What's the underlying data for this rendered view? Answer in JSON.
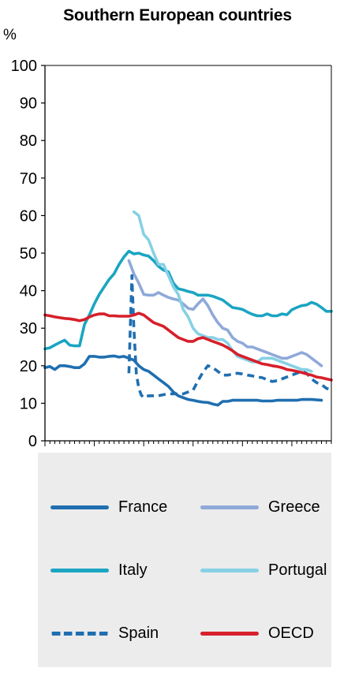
{
  "chart_data": {
    "type": "line",
    "title": "Southern European countries",
    "ylabel": "%",
    "xlim": [
      1960,
      2018
    ],
    "ylim": [
      0,
      100
    ],
    "xticks": [
      1960,
      1970,
      1980,
      1990,
      2000,
      2010
    ],
    "yticks": [
      0,
      10,
      20,
      30,
      40,
      50,
      60,
      70,
      80,
      90,
      100
    ],
    "legend_position": "bottom",
    "series": [
      {
        "name": "France",
        "color": "#1f6fb0",
        "dashed": false,
        "x": [
          1960,
          1961,
          1962,
          1963,
          1964,
          1965,
          1966,
          1967,
          1968,
          1969,
          1970,
          1971,
          1972,
          1973,
          1974,
          1975,
          1976,
          1977,
          1978,
          1979,
          1980,
          1981,
          1982,
          1983,
          1984,
          1985,
          1986,
          1987,
          1988,
          1989,
          1990,
          1991,
          1992,
          1993,
          1994,
          1995,
          1996,
          1997,
          1998,
          1999,
          2000,
          2001,
          2002,
          2003,
          2004,
          2005,
          2006,
          2007,
          2008,
          2009,
          2010,
          2011,
          2012,
          2013,
          2014,
          2015,
          2016
        ],
        "y": [
          19.5,
          19.8,
          19,
          20,
          20,
          19.8,
          19.5,
          19.5,
          20.5,
          22.5,
          22.5,
          22.3,
          22.3,
          22.5,
          22.6,
          22.3,
          22.5,
          22,
          21.5,
          20,
          19,
          18.5,
          17.5,
          16.5,
          15.5,
          14.5,
          13,
          12,
          11.5,
          11,
          10.8,
          10.5,
          10.3,
          10.2,
          9.8,
          9.5,
          10.5,
          10.5,
          10.8,
          10.8,
          10.8,
          10.8,
          10.8,
          10.8,
          10.6,
          10.6,
          10.6,
          10.8,
          10.8,
          10.8,
          10.8,
          10.8,
          11,
          11,
          11,
          10.9,
          10.8
        ]
      },
      {
        "name": "Greece",
        "color": "#8fa9d9",
        "dashed": false,
        "x": [
          1977,
          1978,
          1979,
          1980,
          1981,
          1982,
          1983,
          1984,
          1985,
          1986,
          1987,
          1988,
          1989,
          1990,
          1991,
          1992,
          1993,
          1994,
          1995,
          1996,
          1997,
          1998,
          1999,
          2000,
          2001,
          2002,
          2003,
          2004,
          2005,
          2006,
          2007,
          2008,
          2009,
          2010,
          2011,
          2012,
          2013,
          2014,
          2015,
          2016
        ],
        "y": [
          48,
          44.5,
          42,
          39,
          38.8,
          38.8,
          39.5,
          38.8,
          38.2,
          37.8,
          37.5,
          36.5,
          35.3,
          35,
          36.5,
          37.8,
          36,
          33.5,
          31.5,
          30,
          29.5,
          27.5,
          26.5,
          26,
          25,
          25,
          24.5,
          24,
          23.5,
          23,
          22.5,
          22,
          22,
          22.5,
          23,
          23.5,
          23,
          22,
          21,
          20
        ]
      },
      {
        "name": "Italy",
        "color": "#1aa5c2",
        "dashed": false,
        "x": [
          1960,
          1961,
          1962,
          1963,
          1964,
          1965,
          1966,
          1967,
          1968,
          1969,
          1970,
          1971,
          1972,
          1973,
          1974,
          1975,
          1976,
          1977,
          1978,
          1979,
          1980,
          1981,
          1982,
          1983,
          1984,
          1985,
          1986,
          1987,
          1988,
          1989,
          1990,
          1991,
          1992,
          1993,
          1994,
          1995,
          1996,
          1997,
          1998,
          1999,
          2000,
          2001,
          2002,
          2003,
          2004,
          2005,
          2006,
          2007,
          2008,
          2009,
          2010,
          2011,
          2012,
          2013,
          2014,
          2015,
          2016,
          2017,
          2018
        ],
        "y": [
          24.5,
          24.8,
          25.5,
          26.2,
          26.8,
          25.5,
          25.3,
          25.3,
          31,
          33.5,
          36.5,
          39,
          41,
          43,
          44.5,
          47,
          49,
          50.5,
          49.8,
          50,
          49.5,
          49.2,
          48,
          46.5,
          45.5,
          45,
          42,
          40.5,
          40.2,
          39.8,
          39.5,
          38.8,
          38.8,
          38.8,
          38.5,
          38,
          37.5,
          36.5,
          35.5,
          35.3,
          35,
          34.3,
          33.7,
          33.3,
          33.3,
          33.8,
          33.3,
          33.3,
          33.8,
          33.6,
          34.9,
          35.5,
          36,
          36.2,
          36.9,
          36.4,
          35.5,
          34.5,
          34.5
        ]
      },
      {
        "name": "Portugal",
        "color": "#86d1e4",
        "dashed": false,
        "x": [
          1978,
          1979,
          1980,
          1981,
          1982,
          1983,
          1984,
          1985,
          1986,
          1987,
          1988,
          1989,
          1990,
          1991,
          1992,
          1993,
          1994,
          1995,
          1996,
          1997,
          1998,
          1999,
          2000,
          2001,
          2002,
          2003,
          2004,
          2005,
          2006,
          2007,
          2008,
          2009,
          2010,
          2011,
          2012,
          2013,
          2014
        ],
        "y": [
          61,
          60,
          55,
          53.5,
          50,
          47,
          47,
          44,
          41,
          39,
          35,
          33,
          30,
          28.5,
          28,
          27.5,
          27.5,
          27,
          27,
          26,
          24,
          22.5,
          22,
          21.5,
          21,
          21,
          22,
          22,
          22,
          21.5,
          21,
          20.5,
          20,
          19.5,
          19,
          19,
          18.5
        ]
      },
      {
        "name": "Spain",
        "color": "#1f6fb0",
        "dashed": true,
        "x": [
          1977,
          1977.6,
          1978,
          1978.5,
          1979,
          1979.5,
          1980,
          1981,
          1982,
          1983,
          1984,
          1985,
          1986,
          1987,
          1988,
          1989,
          1990,
          1991,
          1992,
          1993,
          1994,
          1995,
          1996,
          1997,
          1998,
          1999,
          2000,
          2001,
          2002,
          2003,
          2004,
          2005,
          2006,
          2007,
          2008,
          2009,
          2010,
          2011,
          2012,
          2013,
          2014,
          2015,
          2016,
          2017,
          2018
        ],
        "y": [
          18,
          44,
          30,
          18,
          14,
          12.2,
          11.5,
          12,
          12,
          12,
          12.3,
          12.5,
          12.5,
          12.5,
          12.5,
          13,
          13.5,
          16,
          18.3,
          20,
          19.5,
          18.5,
          17.5,
          17.5,
          17.8,
          18,
          17.8,
          17.5,
          17.3,
          17,
          16.8,
          16.3,
          15.8,
          16,
          16.5,
          17,
          17.5,
          18,
          18.5,
          18,
          16.5,
          15.5,
          15,
          14,
          13.5
        ]
      },
      {
        "name": "OECD",
        "color": "#d6202a",
        "dashed": false,
        "x": [
          1960,
          1961,
          1962,
          1963,
          1964,
          1965,
          1966,
          1967,
          1968,
          1969,
          1970,
          1971,
          1972,
          1973,
          1974,
          1975,
          1976,
          1977,
          1978,
          1979,
          1980,
          1981,
          1982,
          1983,
          1984,
          1985,
          1986,
          1987,
          1988,
          1989,
          1990,
          1991,
          1992,
          1993,
          1994,
          1995,
          1996,
          1997,
          1998,
          1999,
          2000,
          2001,
          2002,
          2003,
          2004,
          2005,
          2006,
          2007,
          2008,
          2009,
          2010,
          2011,
          2012,
          2013,
          2014,
          2015,
          2016,
          2017,
          2018
        ],
        "y": [
          33.5,
          33.3,
          33,
          32.8,
          32.6,
          32.5,
          32.3,
          32,
          32.3,
          33,
          33.5,
          33.8,
          33.8,
          33.3,
          33.3,
          33.2,
          33.2,
          33.2,
          33.5,
          34,
          33.5,
          32.5,
          31.5,
          31,
          30.5,
          29.5,
          28.5,
          27.5,
          27,
          26.5,
          26.5,
          27.2,
          27.5,
          27,
          26.5,
          26,
          25.5,
          24.8,
          24,
          23,
          22.5,
          22,
          21.5,
          21,
          20.5,
          20.3,
          20,
          19.8,
          19.5,
          19,
          18.8,
          18.5,
          18.2,
          17.8,
          17.5,
          17,
          16.8,
          16.5,
          16.2
        ]
      }
    ]
  }
}
